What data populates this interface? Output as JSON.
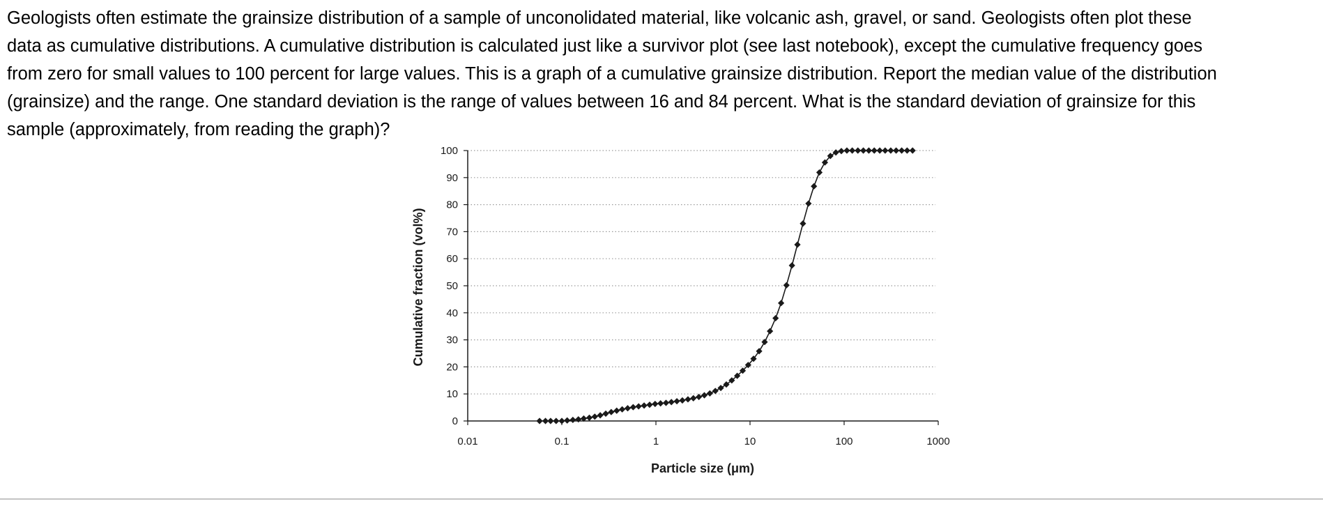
{
  "question": {
    "lines": [
      "Geologists often estimate the grainsize distribution of a sample of unconolidated material, like volcanic ash, gravel, or sand. Geologists often plot these",
      "data as cumulative distributions. A cumulative distribution is calculated just like a survivor plot (see last notebook), except the cumulative frequency goes",
      "from zero for small values to 100 percent for large values. This is a graph of a cumulative grainsize distribution. Report the median value of the distribution",
      "(grainsize) and the range. One standard deviation is the range of values between 16 and 84 percent. What is the standard deviation of grainsize for this",
      "sample (approximately, from reading the graph)?"
    ]
  },
  "chart_data": {
    "type": "line",
    "xlabel": "Particle size (μm)",
    "ylabel": "Cumulative fraction (vol%)",
    "xscale": "log",
    "xlim": [
      0.01,
      1000
    ],
    "ylim": [
      0,
      100
    ],
    "xticks": [
      "0.01",
      "0.1",
      "1",
      "10",
      "100",
      "1000"
    ],
    "yticks": [
      "0",
      "10",
      "20",
      "30",
      "40",
      "50",
      "60",
      "70",
      "80",
      "90",
      "100"
    ],
    "grid": "horizontal dotted",
    "legend": "none",
    "line_color": "#1a1a1a",
    "series": [
      {
        "x": [
          0.058,
          0.067,
          0.076,
          0.087,
          0.1,
          0.114,
          0.131,
          0.15,
          0.171,
          0.196,
          0.224,
          0.256,
          0.293,
          0.335,
          0.383,
          0.438,
          0.501,
          0.573,
          0.655,
          0.749,
          0.857,
          0.98,
          1.12,
          1.28,
          1.46,
          1.67,
          1.91,
          2.19,
          2.5,
          2.86,
          3.27,
          3.74,
          4.28,
          4.89,
          5.6,
          6.4,
          7.31,
          8.36,
          9.56,
          10.9,
          12.5,
          14.3,
          16.3,
          18.7,
          21.4,
          24.4,
          27.9,
          31.9,
          36.5,
          41.8,
          47.8,
          54.6,
          62.5,
          71.4,
          81.7,
          93.4,
          107,
          122,
          140,
          160,
          183,
          209,
          239,
          273,
          313,
          357,
          409,
          467,
          534
        ],
        "y": [
          0,
          0,
          0,
          0,
          0,
          0.2,
          0.4,
          0.6,
          0.9,
          1.2,
          1.6,
          2.1,
          2.7,
          3.3,
          3.8,
          4.3,
          4.7,
          5.1,
          5.4,
          5.7,
          6.0,
          6.3,
          6.5,
          6.7,
          7.0,
          7.3,
          7.6,
          8.0,
          8.4,
          8.9,
          9.5,
          10.2,
          11.1,
          12.2,
          13.5,
          15.0,
          16.7,
          18.6,
          20.7,
          23.0,
          25.8,
          29.2,
          33.2,
          38.0,
          43.6,
          50.2,
          57.5,
          65.2,
          73.0,
          80.4,
          86.8,
          91.9,
          95.6,
          98.0,
          99.3,
          99.8,
          100,
          100,
          100,
          100,
          100,
          100,
          100,
          100,
          100,
          100,
          100,
          100,
          100
        ]
      }
    ]
  }
}
